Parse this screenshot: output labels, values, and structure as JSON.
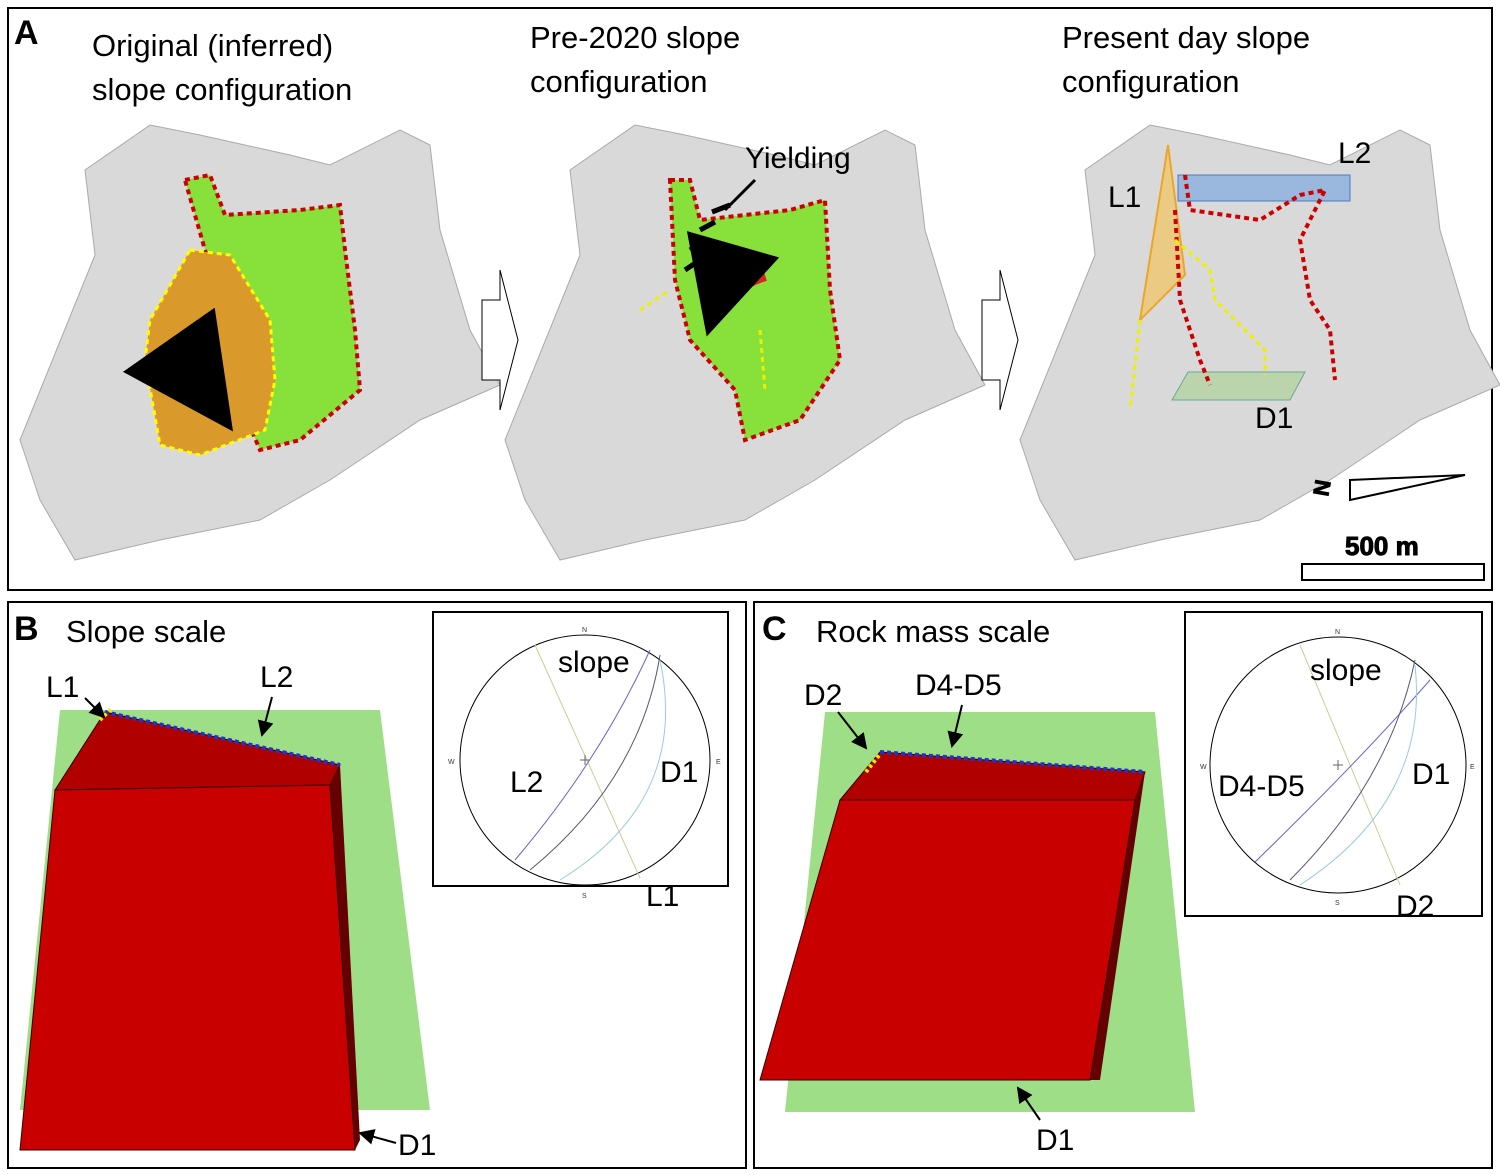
{
  "panel_a": {
    "label": "A",
    "titles": [
      [
        "Original (inferred)",
        "slope configuration"
      ],
      [
        "Pre-2020 slope",
        "configuration"
      ],
      [
        "Present day slope",
        "configuration"
      ]
    ],
    "annotations": {
      "yielding": "Yielding",
      "l1": "L1",
      "l2": "L2",
      "d1": "D1",
      "north": "N",
      "scale": "500 m"
    }
  },
  "panel_b": {
    "label": "B",
    "title": "Slope scale",
    "labels": {
      "l1": "L1",
      "l2": "L2",
      "d1": "D1"
    },
    "stereonet": {
      "directions": [
        "N",
        "E",
        "S",
        "W"
      ],
      "labels": {
        "slope": "slope",
        "l2": "L2",
        "d1": "D1",
        "l1": "L1"
      }
    }
  },
  "panel_c": {
    "label": "C",
    "title": "Rock mass scale",
    "labels": {
      "d2": "D2",
      "d4d5": "D4-D5",
      "d1": "D1"
    },
    "stereonet": {
      "directions": [
        "N",
        "E",
        "S",
        "W"
      ],
      "labels": {
        "slope": "slope",
        "d4d5": "D4-D5",
        "d1": "D1",
        "d2": "D2"
      }
    }
  }
}
